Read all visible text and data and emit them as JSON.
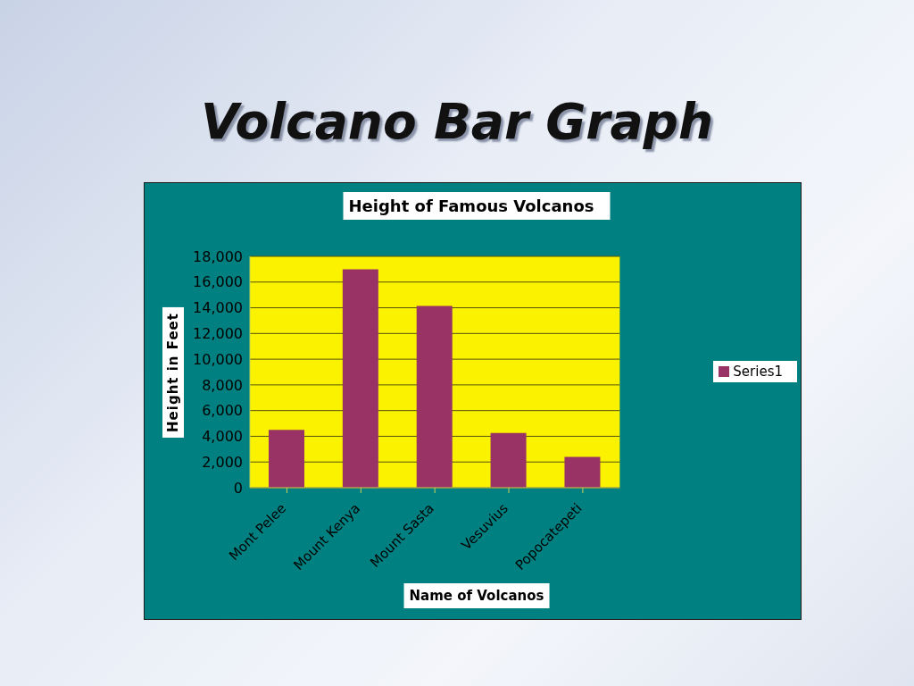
{
  "chart_data": {
    "type": "bar",
    "title": "Volcano Bar Graph",
    "subtitle": "Height of Famous Volcanos",
    "xlabel": "Name of Volcanos",
    "ylabel": "Height in Feet",
    "categories": [
      "Mont Pelee",
      "Mount Kenya",
      "Mount Sasta",
      "Vesuvius",
      "Popocatepeti"
    ],
    "series": [
      {
        "name": "Series1",
        "color": "#993366",
        "values": [
          4500,
          17000,
          14150,
          4250,
          2400
        ]
      }
    ],
    "ylim": [
      0,
      18000
    ],
    "yticks": [
      0,
      {
        "value": 2000,
        "label": "2,000"
      },
      {
        "value": 4000,
        "label": "4,000"
      },
      {
        "value": 6000,
        "label": "6,000"
      },
      {
        "value": 8000,
        "label": "8,000"
      },
      {
        "value": 10000,
        "label": "10,000"
      },
      {
        "value": 12000,
        "label": "12,000"
      },
      {
        "value": 14000,
        "label": "14,000"
      },
      {
        "value": 16000,
        "label": "16,000"
      },
      {
        "value": 18000,
        "label": "18,000"
      }
    ],
    "grid": "y",
    "legend": "right"
  }
}
